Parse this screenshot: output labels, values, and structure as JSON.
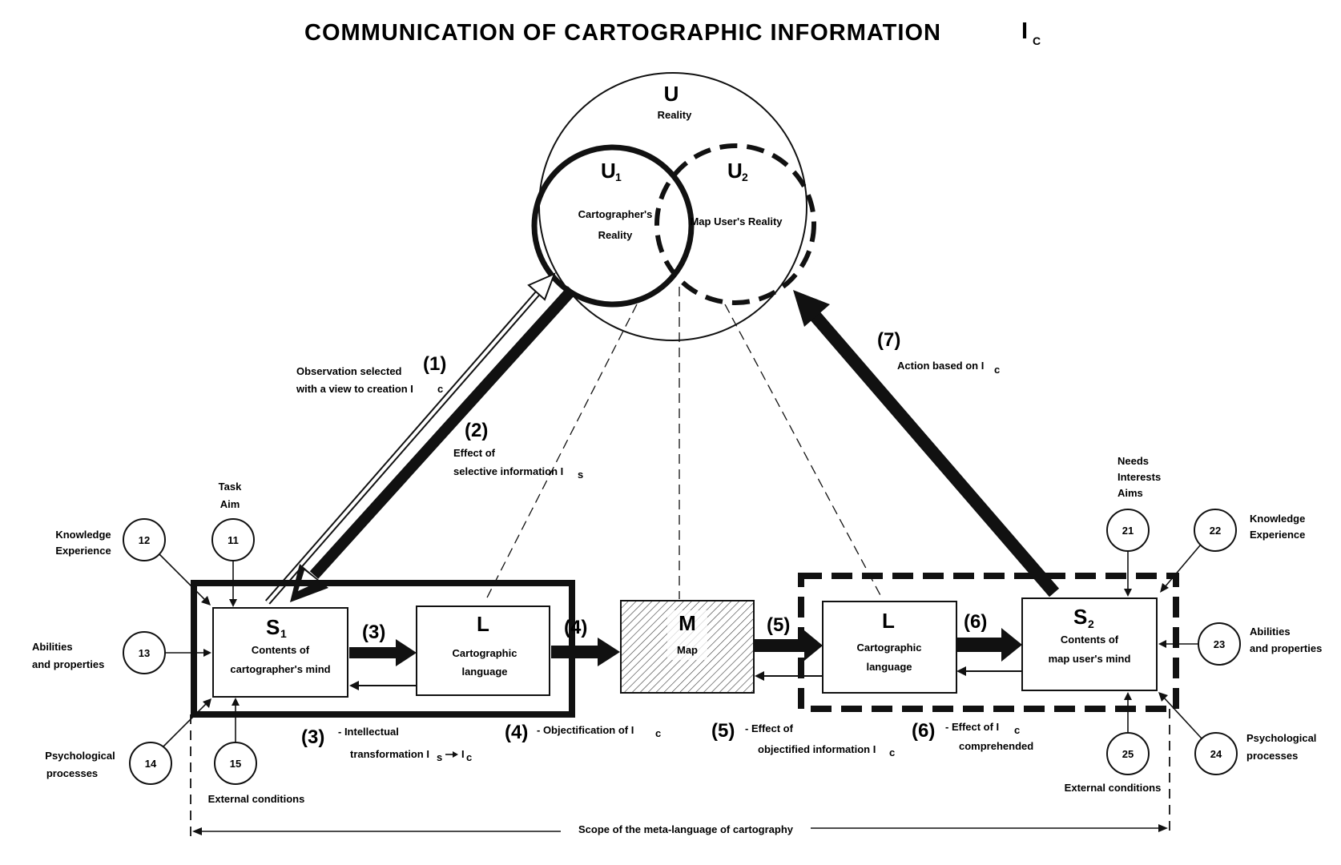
{
  "title": "COMMUNICATION OF CARTOGRAPHIC INFORMATION",
  "title_symbol": "I",
  "title_symbol_sub": "C",
  "reality": {
    "symbol": "U",
    "label": "Reality"
  },
  "u1": {
    "symbol": "U",
    "sub": "1",
    "line1": "Cartographer's",
    "line2": "Reality"
  },
  "u2": {
    "symbol": "U",
    "sub": "2",
    "label": "Map User's  Reality"
  },
  "flows": {
    "f1": {
      "num": "(1)",
      "line1": "Observation selected",
      "line2": "with a view to creation I",
      "line2_sub": "c"
    },
    "f2": {
      "num": "(2)",
      "line1": "Effect of",
      "line2": "selective information I",
      "line2_sub": "s"
    },
    "f7": {
      "num": "(7)",
      "label": "Action based on I",
      "label_sub": "c"
    },
    "f3": {
      "num": "(3)"
    },
    "f4": {
      "num": "(4)"
    },
    "f5": {
      "num": "(5)"
    },
    "f6": {
      "num": "(6)"
    }
  },
  "boxes": {
    "s1": {
      "symbol": "S",
      "sub": "1",
      "line1": "Contents of",
      "line2": "cartographer's mind"
    },
    "l1": {
      "symbol": "L",
      "line1": "Cartographic",
      "line2": "language"
    },
    "m": {
      "symbol": "M",
      "line1": "Map"
    },
    "l2": {
      "symbol": "L",
      "line1": "Cartographic",
      "line2": "language"
    },
    "s2": {
      "symbol": "S",
      "sub": "2",
      "line1": "Contents of",
      "line2": "map user's mind"
    }
  },
  "bottom_labels": {
    "b3": {
      "num": "(3)",
      "line1": "- Intellectual",
      "line2": "transformation I",
      "line2_sub": "s",
      "line2_tail": "I",
      "line2_tail_sub": "c"
    },
    "b4": {
      "num": "(4)",
      "label": "- Objectification of I",
      "label_sub": "c"
    },
    "b5": {
      "num": "(5)",
      "line1": "- Effect of",
      "line2": "objectified information I",
      "line2_sub": "c"
    },
    "b6": {
      "num": "(6)",
      "line1": "- Effect of  I",
      "line1_sub": "c",
      "line2": "comprehended"
    }
  },
  "factors": {
    "c11": {
      "num": "11",
      "line1": "Task",
      "line2": "Aim"
    },
    "c12": {
      "num": "12",
      "line1": "Knowledge",
      "line2": "Experience"
    },
    "c13": {
      "num": "13",
      "line1": "Abilities",
      "line2": "and properties"
    },
    "c14": {
      "num": "14",
      "line1": "Psychological",
      "line2": "processes"
    },
    "c15": {
      "num": "15",
      "label": "External conditions"
    },
    "c21": {
      "num": "21",
      "line1": "Needs",
      "line2": "Interests",
      "line3": "Aims"
    },
    "c22": {
      "num": "22",
      "line1": "Knowledge",
      "line2": "Experience"
    },
    "c23": {
      "num": "23",
      "line1": "Abilities",
      "line2": "and properties"
    },
    "c24": {
      "num": "24",
      "line1": "Psychological",
      "line2": "processes"
    },
    "c25": {
      "num": "25",
      "label": "External conditions"
    }
  },
  "scope": {
    "label": "Scope of the meta-language of cartography"
  }
}
